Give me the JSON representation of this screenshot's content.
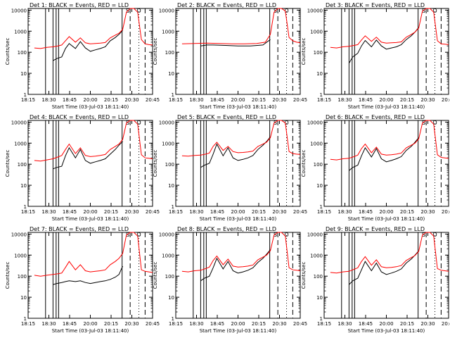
{
  "figure": {
    "xlabel": "Start Time (03-Jul-03 18:11:40)",
    "ylabel": "Counts/sec",
    "colors": {
      "events": "#000000",
      "lld": "#ff0000",
      "axes": "#000000"
    }
  },
  "chart_data": [
    {
      "type": "line",
      "title": "Det 1: BLACK = Events, RED = LLD",
      "x_ticks": [
        "18:15",
        "18:30",
        "18:45",
        "20:00",
        "20:15",
        "20:30",
        "20:45"
      ],
      "y_ticks": [
        "1",
        "10",
        "100",
        "1000",
        "10000"
      ],
      "ylim": [
        1,
        12000
      ],
      "log_y": true,
      "annotations": [
        "S",
        "D"
      ],
      "series": [
        {
          "key": "events",
          "x": [
            0.2,
            0.23,
            0.27,
            0.3,
            0.33,
            0.38,
            0.42,
            0.46,
            0.5,
            0.54,
            0.58,
            0.62,
            0.66,
            0.7,
            0.73,
            0.76
          ],
          "values": [
            40,
            50,
            60,
            150,
            260,
            150,
            320,
            160,
            110,
            130,
            150,
            180,
            350,
            500,
            700,
            1100
          ]
        },
        {
          "key": "lld",
          "x": [
            0.05,
            0.1,
            0.15,
            0.2,
            0.24,
            0.27,
            0.3,
            0.33,
            0.38,
            0.42,
            0.46,
            0.5,
            0.54,
            0.58,
            0.62,
            0.66,
            0.7,
            0.73,
            0.76,
            0.79,
            0.82,
            0.85,
            0.88,
            0.91,
            0.94,
            0.97,
            1.0
          ],
          "values": [
            160,
            150,
            170,
            180,
            200,
            220,
            350,
            550,
            300,
            480,
            280,
            250,
            260,
            270,
            290,
            480,
            650,
            800,
            1200,
            8000,
            12000,
            12000,
            8000,
            400,
            250,
            230,
            220
          ]
        }
      ]
    },
    {
      "type": "line",
      "title": "Det 2: BLACK = Events, RED = LLD",
      "x_ticks": [
        "18:15",
        "18:30",
        "18:45",
        "20:00",
        "20:15",
        "20:30",
        "20:45"
      ],
      "y_ticks": [
        "1",
        "10",
        "100",
        "1000",
        "10000"
      ],
      "ylim": [
        1,
        12000
      ],
      "log_y": true,
      "annotations": [
        "S",
        "D"
      ],
      "series": [
        {
          "key": "events",
          "x": [
            0.2,
            0.25,
            0.3,
            0.4,
            0.5,
            0.6,
            0.7,
            0.76
          ],
          "values": [
            200,
            220,
            220,
            210,
            200,
            200,
            220,
            400
          ]
        },
        {
          "key": "lld",
          "x": [
            0.05,
            0.15,
            0.25,
            0.35,
            0.45,
            0.55,
            0.65,
            0.72,
            0.76,
            0.79,
            0.82,
            0.85,
            0.88,
            0.91,
            0.94,
            0.97,
            1.0
          ],
          "values": [
            250,
            260,
            270,
            260,
            250,
            250,
            260,
            300,
            700,
            8000,
            12000,
            12000,
            9000,
            500,
            350,
            300,
            280
          ]
        }
      ]
    },
    {
      "type": "line",
      "title": "Det 3: BLACK = Events, RED = LLD",
      "x_ticks": [
        "18:15",
        "18:30",
        "18:45",
        "20:00",
        "20:15",
        "20:30",
        "20:45"
      ],
      "y_ticks": [
        "1",
        "10",
        "100",
        "1000",
        "10000"
      ],
      "ylim": [
        1,
        12000
      ],
      "log_y": true,
      "annotations": [
        "S",
        "D"
      ],
      "series": [
        {
          "key": "events",
          "x": [
            0.2,
            0.23,
            0.27,
            0.3,
            0.33,
            0.38,
            0.42,
            0.46,
            0.5,
            0.54,
            0.58,
            0.62,
            0.66,
            0.7,
            0.73,
            0.76
          ],
          "values": [
            30,
            60,
            90,
            200,
            360,
            180,
            380,
            200,
            140,
            160,
            180,
            230,
            400,
            600,
            900,
            1500
          ]
        },
        {
          "key": "lld",
          "x": [
            0.05,
            0.1,
            0.15,
            0.2,
            0.24,
            0.27,
            0.3,
            0.33,
            0.38,
            0.42,
            0.46,
            0.5,
            0.54,
            0.58,
            0.62,
            0.66,
            0.7,
            0.73,
            0.76,
            0.79,
            0.82,
            0.85,
            0.88,
            0.91,
            0.94,
            0.97,
            1.0
          ],
          "values": [
            170,
            160,
            180,
            190,
            210,
            230,
            380,
            600,
            330,
            520,
            300,
            270,
            280,
            290,
            310,
            520,
            700,
            900,
            1400,
            9000,
            12000,
            12000,
            8000,
            350,
            250,
            240,
            230
          ]
        }
      ]
    },
    {
      "type": "line",
      "title": "Det 4: BLACK = Events, RED = LLD",
      "x_ticks": [
        "18:15",
        "18:30",
        "18:45",
        "20:00",
        "20:15",
        "20:30",
        "20:45"
      ],
      "y_ticks": [
        "1",
        "10",
        "100",
        "1000",
        "10000"
      ],
      "ylim": [
        1,
        12000
      ],
      "log_y": true,
      "annotations": [
        "S",
        "D"
      ],
      "series": [
        {
          "key": "events",
          "x": [
            0.2,
            0.23,
            0.27,
            0.3,
            0.33,
            0.38,
            0.42,
            0.46,
            0.5,
            0.54,
            0.58,
            0.62,
            0.66,
            0.7,
            0.73,
            0.76
          ],
          "values": [
            60,
            70,
            80,
            250,
            600,
            200,
            500,
            150,
            110,
            130,
            150,
            180,
            300,
            500,
            800,
            1200
          ]
        },
        {
          "key": "lld",
          "x": [
            0.05,
            0.1,
            0.15,
            0.2,
            0.24,
            0.27,
            0.3,
            0.33,
            0.38,
            0.42,
            0.46,
            0.5,
            0.54,
            0.58,
            0.62,
            0.66,
            0.7,
            0.73,
            0.76,
            0.79,
            0.82,
            0.85,
            0.88,
            0.91,
            0.94,
            0.97,
            1.0
          ],
          "values": [
            150,
            140,
            160,
            180,
            220,
            260,
            500,
            900,
            320,
            600,
            260,
            230,
            240,
            260,
            290,
            500,
            700,
            900,
            1500,
            9000,
            12000,
            12000,
            8000,
            280,
            200,
            190,
            180
          ]
        }
      ]
    },
    {
      "type": "line",
      "title": "Det 5: BLACK = Events, RED = LLD",
      "x_ticks": [
        "18:15",
        "18:30",
        "18:45",
        "20:00",
        "20:15",
        "20:30",
        "20:45"
      ],
      "y_ticks": [
        "1",
        "10",
        "100",
        "1000",
        "10000"
      ],
      "ylim": [
        1,
        12000
      ],
      "log_y": true,
      "annotations": [
        "S",
        "D"
      ],
      "series": [
        {
          "key": "events",
          "x": [
            0.2,
            0.23,
            0.27,
            0.3,
            0.33,
            0.38,
            0.42,
            0.46,
            0.5,
            0.54,
            0.58,
            0.62,
            0.66,
            0.7,
            0.73,
            0.76
          ],
          "values": [
            70,
            90,
            110,
            300,
            900,
            250,
            600,
            200,
            150,
            170,
            200,
            260,
            500,
            800,
            1200,
            2000
          ]
        },
        {
          "key": "lld",
          "x": [
            0.05,
            0.1,
            0.15,
            0.2,
            0.24,
            0.27,
            0.3,
            0.33,
            0.38,
            0.42,
            0.46,
            0.5,
            0.54,
            0.58,
            0.62,
            0.66,
            0.7,
            0.73,
            0.76,
            0.79,
            0.82,
            0.85,
            0.88,
            0.91,
            0.94,
            0.97,
            1.0
          ],
          "values": [
            250,
            240,
            260,
            270,
            300,
            340,
            700,
            1100,
            450,
            700,
            400,
            350,
            360,
            380,
            420,
            700,
            900,
            1100,
            1800,
            9000,
            12000,
            12000,
            9000,
            400,
            320,
            300,
            290
          ]
        }
      ]
    },
    {
      "type": "line",
      "title": "Det 6: BLACK = Events, RED = LLD",
      "x_ticks": [
        "18:15",
        "18:30",
        "18:45",
        "20:00",
        "20:15",
        "20:30",
        "20:45"
      ],
      "y_ticks": [
        "1",
        "10",
        "100",
        "1000",
        "10000"
      ],
      "ylim": [
        1,
        12000
      ],
      "log_y": true,
      "annotations": [
        "S",
        "D"
      ],
      "series": [
        {
          "key": "events",
          "x": [
            0.2,
            0.23,
            0.27,
            0.3,
            0.33,
            0.38,
            0.42,
            0.46,
            0.5,
            0.54,
            0.58,
            0.62,
            0.66,
            0.7,
            0.73,
            0.76
          ],
          "values": [
            50,
            70,
            90,
            250,
            600,
            220,
            550,
            180,
            130,
            150,
            180,
            230,
            450,
            700,
            1100,
            1800
          ]
        },
        {
          "key": "lld",
          "x": [
            0.05,
            0.1,
            0.15,
            0.2,
            0.24,
            0.27,
            0.3,
            0.33,
            0.38,
            0.42,
            0.46,
            0.5,
            0.54,
            0.58,
            0.62,
            0.66,
            0.7,
            0.73,
            0.76,
            0.79,
            0.82,
            0.85,
            0.88,
            0.91,
            0.94,
            0.97,
            1.0
          ],
          "values": [
            170,
            160,
            180,
            190,
            230,
            270,
            550,
            900,
            350,
            650,
            300,
            270,
            280,
            300,
            340,
            600,
            800,
            1000,
            1600,
            9000,
            12000,
            12000,
            8000,
            280,
            210,
            200,
            190
          ]
        }
      ]
    },
    {
      "type": "line",
      "title": "Det 7: BLACK = Events, RED = LLD",
      "x_ticks": [
        "18:15",
        "18:30",
        "18:45",
        "20:00",
        "20:15",
        "20:30",
        "20:45"
      ],
      "y_ticks": [
        "1",
        "10",
        "100",
        "1000",
        "10000"
      ],
      "ylim": [
        1,
        12000
      ],
      "log_y": true,
      "annotations": [
        "S",
        "D"
      ],
      "series": [
        {
          "key": "events",
          "x": [
            0.2,
            0.23,
            0.27,
            0.3,
            0.33,
            0.38,
            0.42,
            0.46,
            0.5,
            0.54,
            0.58,
            0.62,
            0.66,
            0.7,
            0.73,
            0.76
          ],
          "values": [
            40,
            45,
            50,
            55,
            60,
            55,
            60,
            50,
            45,
            50,
            55,
            60,
            70,
            90,
            120,
            300
          ]
        },
        {
          "key": "lld",
          "x": [
            0.05,
            0.1,
            0.15,
            0.2,
            0.24,
            0.27,
            0.3,
            0.33,
            0.38,
            0.42,
            0.46,
            0.5,
            0.54,
            0.58,
            0.62,
            0.66,
            0.7,
            0.73,
            0.76,
            0.79,
            0.82,
            0.85,
            0.88,
            0.91,
            0.94,
            0.97,
            1.0
          ],
          "values": [
            110,
            100,
            110,
            120,
            130,
            140,
            260,
            500,
            200,
            350,
            180,
            160,
            170,
            180,
            200,
            350,
            500,
            700,
            1200,
            9000,
            12000,
            12000,
            8000,
            200,
            170,
            160,
            150
          ]
        }
      ]
    },
    {
      "type": "line",
      "title": "Det 8: BLACK = Events, RED = LLD",
      "x_ticks": [
        "18:15",
        "18:30",
        "18:45",
        "20:00",
        "20:15",
        "20:30",
        "20:45"
      ],
      "y_ticks": [
        "1",
        "10",
        "100",
        "1000",
        "10000"
      ],
      "ylim": [
        1,
        12000
      ],
      "log_y": true,
      "annotations": [
        "S",
        "D"
      ],
      "series": [
        {
          "key": "events",
          "x": [
            0.2,
            0.23,
            0.27,
            0.3,
            0.33,
            0.38,
            0.42,
            0.46,
            0.5,
            0.54,
            0.58,
            0.62,
            0.66,
            0.7,
            0.73,
            0.76
          ],
          "values": [
            60,
            80,
            100,
            250,
            700,
            220,
            500,
            180,
            140,
            160,
            190,
            250,
            450,
            700,
            1100,
            1800
          ]
        },
        {
          "key": "lld",
          "x": [
            0.05,
            0.1,
            0.15,
            0.2,
            0.24,
            0.27,
            0.3,
            0.33,
            0.38,
            0.42,
            0.46,
            0.5,
            0.54,
            0.58,
            0.62,
            0.66,
            0.7,
            0.73,
            0.76,
            0.79,
            0.82,
            0.85,
            0.88,
            0.91,
            0.94,
            0.97,
            1.0
          ],
          "values": [
            170,
            160,
            180,
            190,
            230,
            270,
            550,
            900,
            350,
            650,
            300,
            270,
            280,
            300,
            340,
            600,
            800,
            1000,
            1600,
            9000,
            12000,
            12000,
            8000,
            250,
            200,
            190,
            180
          ]
        }
      ]
    },
    {
      "type": "line",
      "title": "Det 9: BLACK = Events, RED = LLD",
      "x_ticks": [
        "18:15",
        "18:30",
        "18:45",
        "20:00",
        "20:15",
        "20:30",
        "20:45"
      ],
      "y_ticks": [
        "1",
        "10",
        "100",
        "1000",
        "10000"
      ],
      "ylim": [
        1,
        12000
      ],
      "log_y": true,
      "annotations": [
        "S",
        "D"
      ],
      "series": [
        {
          "key": "events",
          "x": [
            0.2,
            0.23,
            0.27,
            0.3,
            0.33,
            0.38,
            0.42,
            0.46,
            0.5,
            0.54,
            0.58,
            0.62,
            0.66,
            0.7,
            0.73,
            0.76
          ],
          "values": [
            40,
            60,
            80,
            200,
            500,
            180,
            420,
            160,
            120,
            140,
            170,
            220,
            420,
            650,
            1000,
            1600
          ]
        },
        {
          "key": "lld",
          "x": [
            0.05,
            0.1,
            0.15,
            0.2,
            0.24,
            0.27,
            0.3,
            0.33,
            0.38,
            0.42,
            0.46,
            0.5,
            0.54,
            0.58,
            0.62,
            0.66,
            0.7,
            0.73,
            0.76,
            0.79,
            0.82,
            0.85,
            0.88,
            0.91,
            0.94,
            0.97,
            1.0
          ],
          "values": [
            150,
            140,
            160,
            170,
            210,
            250,
            500,
            850,
            330,
            600,
            280,
            250,
            260,
            280,
            320,
            560,
            760,
            950,
            1500,
            9000,
            12000,
            12000,
            8000,
            230,
            190,
            180,
            170
          ]
        }
      ]
    }
  ]
}
